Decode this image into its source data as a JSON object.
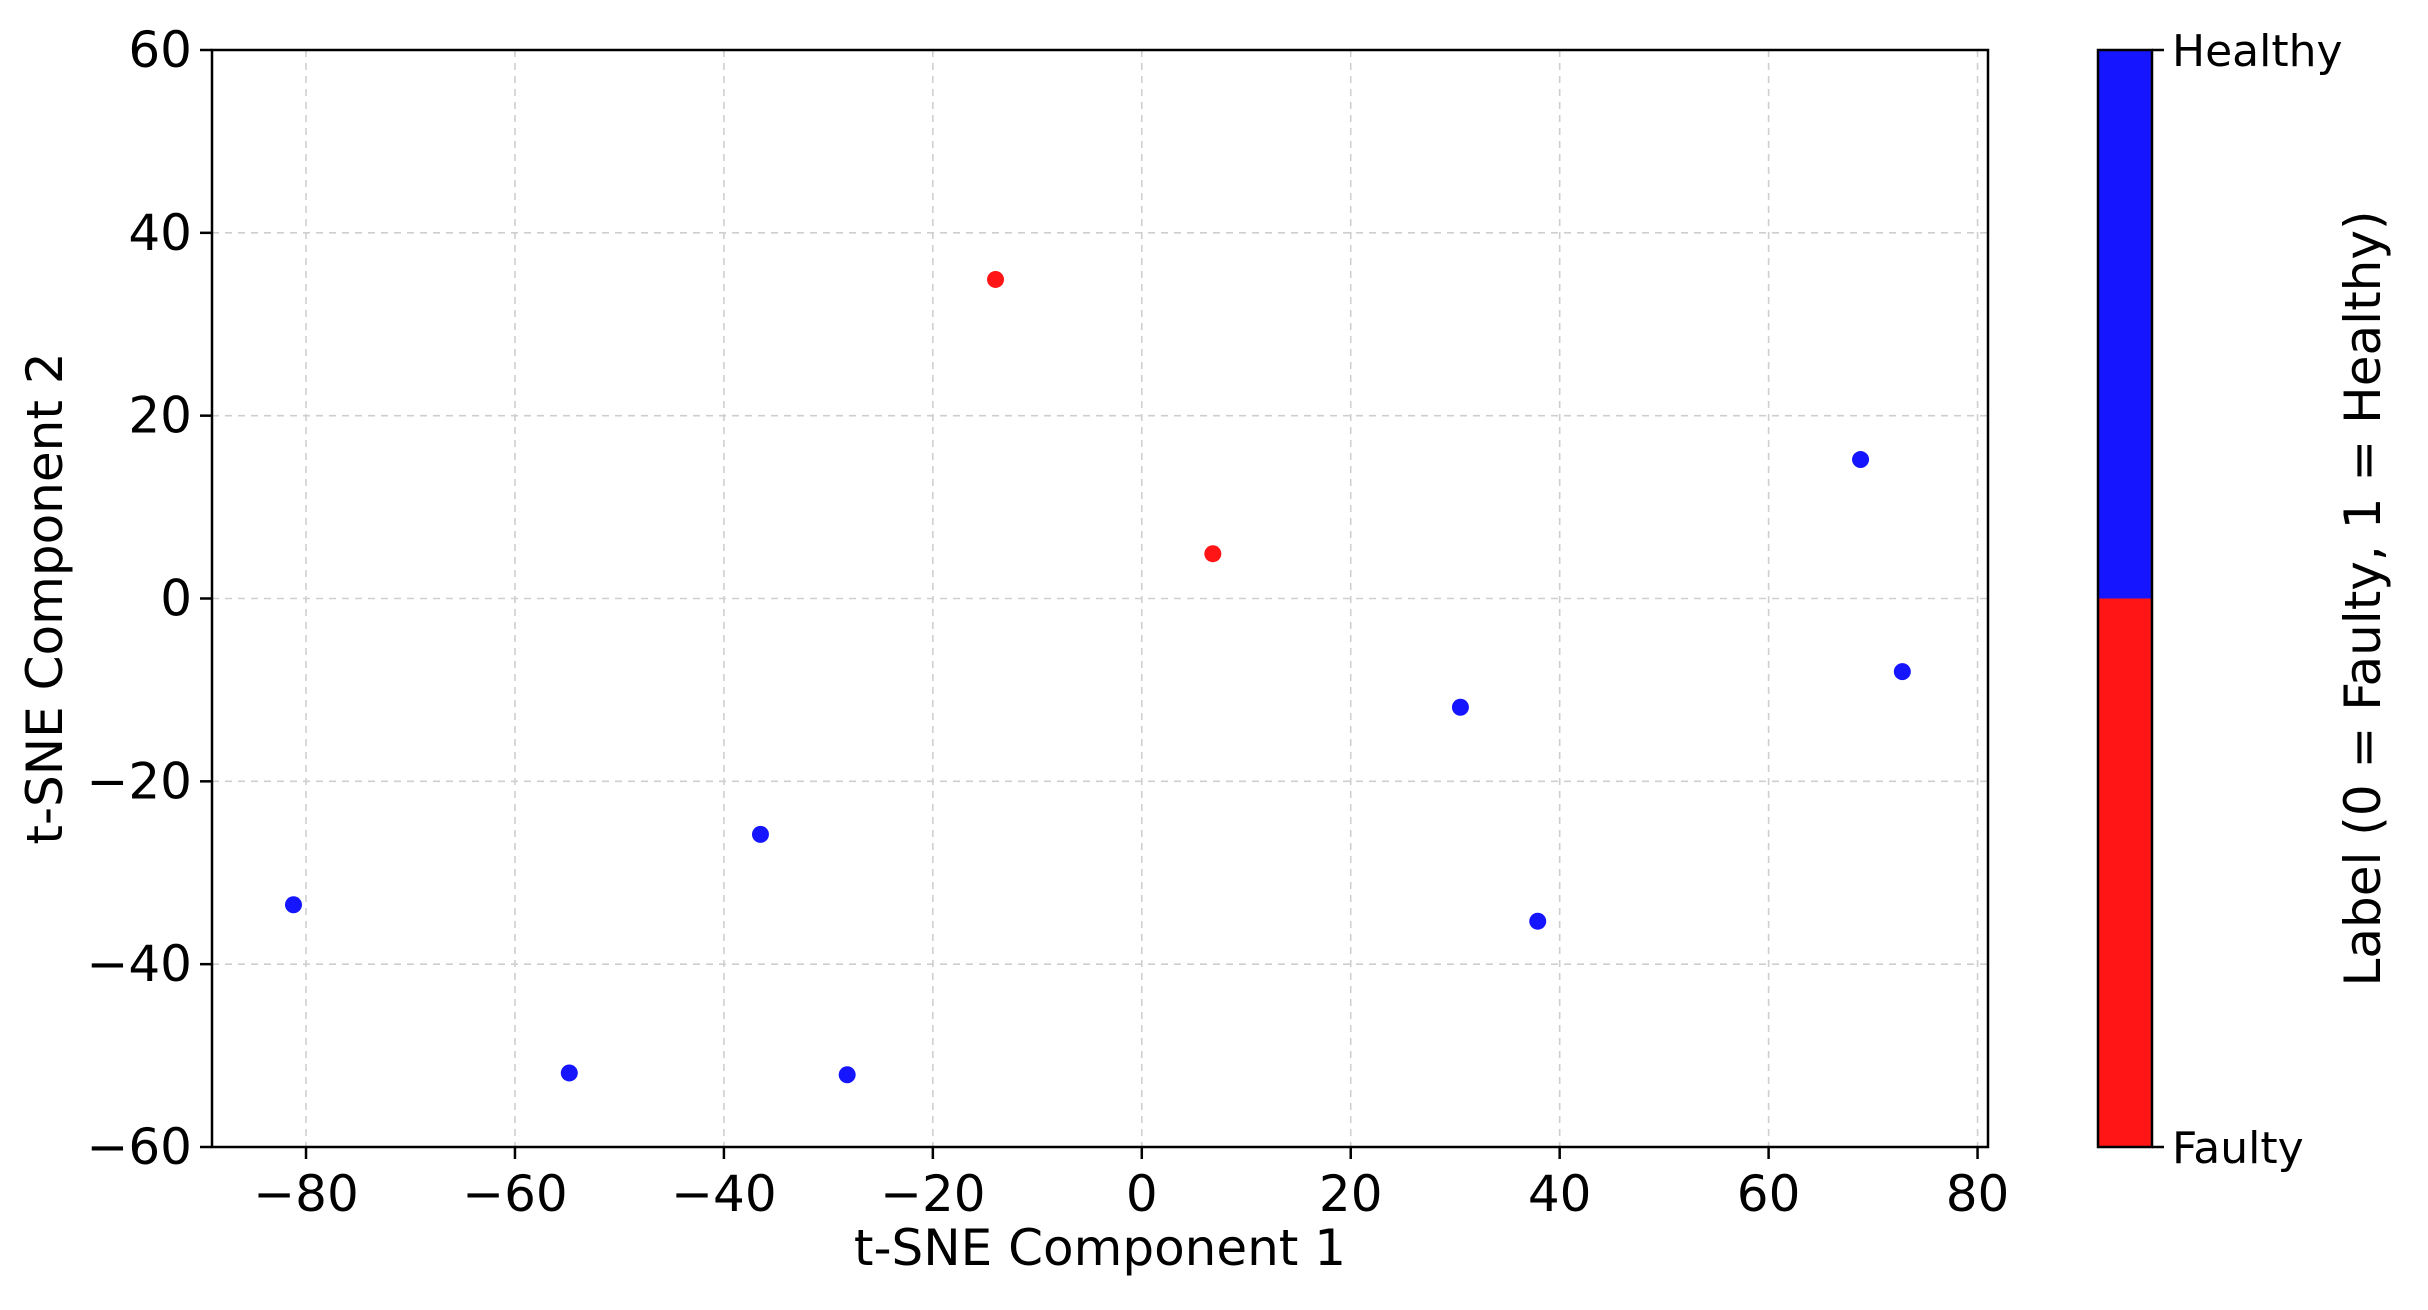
{
  "chart_data": {
    "type": "scatter",
    "xlabel": "t-SNE Component 1",
    "ylabel": "t-SNE Component 2",
    "xlim": [
      -89,
      81
    ],
    "ylim": [
      -60,
      60
    ],
    "xticks": [
      -80,
      -60,
      -40,
      -20,
      0,
      20,
      40,
      60,
      80
    ],
    "yticks": [
      -60,
      -40,
      -20,
      0,
      20,
      40,
      60
    ],
    "grid": true,
    "points": [
      {
        "x": -81.2,
        "y": -33.5,
        "label": 1
      },
      {
        "x": -54.8,
        "y": -51.9,
        "label": 1
      },
      {
        "x": -36.5,
        "y": -25.8,
        "label": 1
      },
      {
        "x": -28.2,
        "y": -52.1,
        "label": 1
      },
      {
        "x": -14.0,
        "y": 34.9,
        "label": 0
      },
      {
        "x": 6.8,
        "y": 4.9,
        "label": 0
      },
      {
        "x": 30.5,
        "y": -11.9,
        "label": 1
      },
      {
        "x": 37.9,
        "y": -35.3,
        "label": 1
      },
      {
        "x": 68.8,
        "y": 15.2,
        "label": 1
      },
      {
        "x": 72.8,
        "y": -8.0,
        "label": 1
      }
    ],
    "colorbar": {
      "label": "Label (0 = Faulty, 1 = Healthy)",
      "ticks": [
        {
          "value": 1,
          "text": "Healthy"
        },
        {
          "value": 0,
          "text": "Faulty"
        }
      ],
      "colors": {
        "0": "#ff1515",
        "1": "#1515ff"
      }
    }
  }
}
